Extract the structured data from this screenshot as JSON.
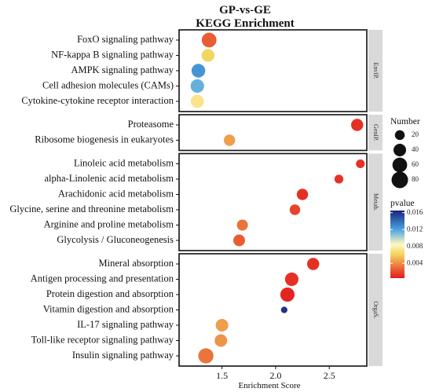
{
  "chart_data": {
    "type": "scatter",
    "title": "GP-vs-GE",
    "subtitle": "KEGG Enrichment",
    "xlabel": "Enrichment Score",
    "xlim": [
      1.1,
      2.85
    ],
    "xticks": [
      "1.5",
      "2.0",
      "2.5"
    ],
    "xtick_values": [
      1.5,
      2.0,
      2.5
    ],
    "panels": [
      {
        "strip": "EnvIP.",
        "pathways": [
          {
            "term": "FoxO signaling pathway",
            "score": 1.38,
            "count": 60,
            "pvalue": 0.0025
          },
          {
            "term": "NF-kappa B signaling pathway",
            "score": 1.37,
            "count": 42,
            "pvalue": 0.0062
          },
          {
            "term": "AMPK signaling pathway",
            "score": 1.28,
            "count": 50,
            "pvalue": 0.0125
          },
          {
            "term": "Cell adhesion molecules (CAMs)",
            "score": 1.27,
            "count": 48,
            "pvalue": 0.0115
          },
          {
            "term": "Cytokine-cytokine receptor interaction",
            "score": 1.27,
            "count": 45,
            "pvalue": 0.0072
          }
        ]
      },
      {
        "strip": "GenIP.",
        "pathways": [
          {
            "term": "Proteasome",
            "score": 2.76,
            "count": 36,
            "pvalue": 0.0012
          },
          {
            "term": "Ribosome biogenesis in eukaryotes",
            "score": 1.57,
            "count": 30,
            "pvalue": 0.0045
          }
        ]
      },
      {
        "strip": "Metab.",
        "pathways": [
          {
            "term": "Linoleic acid metabolism",
            "score": 2.79,
            "count": 14,
            "pvalue": 0.0012
          },
          {
            "term": "alpha-Linolenic acid metabolism",
            "score": 2.59,
            "count": 15,
            "pvalue": 0.0013
          },
          {
            "term": "Arachidonic acid metabolism",
            "score": 2.25,
            "count": 30,
            "pvalue": 0.0012
          },
          {
            "term": "Glycine, serine and threonine metabolism",
            "score": 2.18,
            "count": 25,
            "pvalue": 0.0018
          },
          {
            "term": "Arginine and proline metabolism",
            "score": 1.69,
            "count": 28,
            "pvalue": 0.0032
          },
          {
            "term": "Glycolysis / Gluconeogenesis",
            "score": 1.66,
            "count": 33,
            "pvalue": 0.0025
          }
        ]
      },
      {
        "strip": "OrgaS.",
        "pathways": [
          {
            "term": "Mineral absorption",
            "score": 2.35,
            "count": 36,
            "pvalue": 0.0012
          },
          {
            "term": "Antigen processing and presentation",
            "score": 2.15,
            "count": 48,
            "pvalue": 0.0012
          },
          {
            "term": "Protein digestion and absorption",
            "score": 2.11,
            "count": 55,
            "pvalue": 0.0008
          },
          {
            "term": "Vitamin digestion and absorption",
            "score": 2.08,
            "count": 5,
            "pvalue": 0.016
          },
          {
            "term": "IL-17 signaling pathway",
            "score": 1.5,
            "count": 40,
            "pvalue": 0.0045
          },
          {
            "term": "Toll-like receptor signaling pathway",
            "score": 1.49,
            "count": 40,
            "pvalue": 0.0042
          },
          {
            "term": "Insulin signaling pathway",
            "score": 1.35,
            "count": 65,
            "pvalue": 0.0032
          }
        ]
      }
    ],
    "size_legend": {
      "title": "Number",
      "values": [
        20,
        40,
        60,
        80
      ]
    },
    "color_legend": {
      "title": "pvalue",
      "ticks": [
        "0.016",
        "0.012",
        "0.008",
        "0.004"
      ],
      "tick_values": [
        0.016,
        0.012,
        0.008,
        0.004
      ],
      "range": [
        0.0005,
        0.0165
      ],
      "low_color": "#e31a1c",
      "mid_low_color": "#f4d35e",
      "mid_color": "#fff8c4",
      "mid_high_color": "#4aa3df",
      "high_color": "#1a237e"
    },
    "grid": false,
    "legend_position": "right"
  }
}
